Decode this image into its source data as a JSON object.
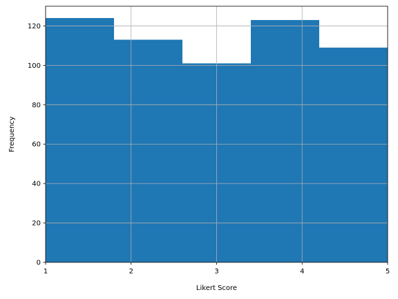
{
  "chart_data": {
    "type": "bar",
    "bins": [
      {
        "start": 1.0,
        "end": 1.8,
        "value": 124
      },
      {
        "start": 1.8,
        "end": 2.6,
        "value": 113
      },
      {
        "start": 2.6,
        "end": 3.4,
        "value": 101
      },
      {
        "start": 3.4,
        "end": 4.2,
        "value": 123
      },
      {
        "start": 4.2,
        "end": 5.0,
        "value": 109
      }
    ],
    "xlabel": "Likert Score",
    "ylabel": "Frequency",
    "xlim": [
      1,
      5
    ],
    "ylim": [
      0,
      130
    ],
    "xticks": [
      1,
      2,
      3,
      4,
      5
    ],
    "yticks": [
      0,
      20,
      40,
      60,
      80,
      100,
      120
    ],
    "grid": true,
    "bar_color": "#1f77b4",
    "grid_color": "#b0b0b0"
  }
}
